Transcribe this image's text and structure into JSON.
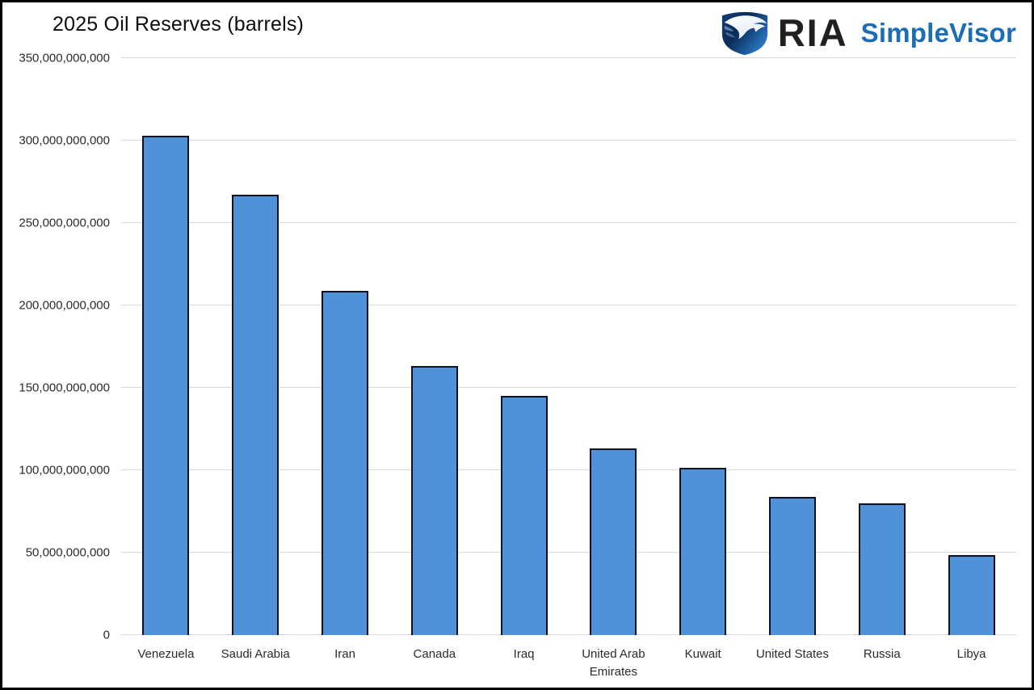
{
  "header": {
    "title": "2025 Oil Reserves (barrels)"
  },
  "logo": {
    "icon": "ria-eagle-shield-icon",
    "brand": "RIA",
    "product": "SimpleVisor",
    "brand_color": "#221f1f",
    "product_color": "#1a6db6",
    "shield_dark": "#0b2c58",
    "shield_mid": "#14519c",
    "shield_light": "#2d83d4"
  },
  "chart_data": {
    "type": "bar",
    "title": "2025 Oil Reserves (barrels)",
    "categories": [
      "Venezuela",
      "Saudi Arabia",
      "Iran",
      "Canada",
      "Iraq",
      "United Arab Emirates",
      "Kuwait",
      "United States",
      "Russia",
      "Libya"
    ],
    "values": [
      303000000000,
      267000000000,
      208600000000,
      163000000000,
      145000000000,
      113000000000,
      101500000000,
      84000000000,
      80000000000,
      48400000000
    ],
    "xlabel": "",
    "ylabel": "",
    "ylim": [
      0,
      350000000000
    ],
    "y_ticks": [
      0,
      50000000000,
      100000000000,
      150000000000,
      200000000000,
      250000000000,
      300000000000,
      350000000000
    ],
    "y_tick_labels": [
      "0",
      "50,000,000,000",
      "100,000,000,000",
      "150,000,000,000",
      "200,000,000,000",
      "250,000,000,000",
      "300,000,000,000",
      "350,000,000,000"
    ],
    "grid": true,
    "legend": false,
    "bar_color": "#4f92d8",
    "bar_border_color": "#0d1220",
    "gridline_color": "#d8d8d8",
    "tick_label_color": "#2b2b2b"
  }
}
